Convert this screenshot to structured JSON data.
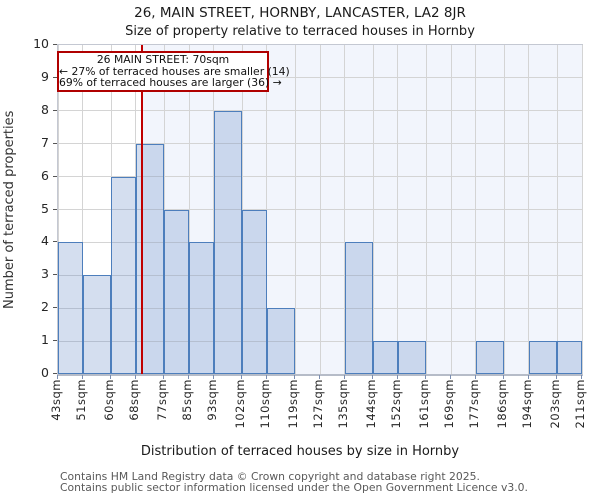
{
  "chart_data": {
    "type": "bar",
    "title": "26, MAIN STREET, HORNBY, LANCASTER, LA2 8JR",
    "subtitle": "Size of property relative to terraced houses in Hornby",
    "xlabel": "Distribution of terraced houses by size in Hornby",
    "ylabel": "Number of terraced properties",
    "bin_edges_sqm": [
      43,
      51,
      60,
      68,
      77,
      85,
      93,
      102,
      110,
      119,
      127,
      135,
      144,
      152,
      161,
      169,
      177,
      186,
      194,
      203,
      211
    ],
    "x_tick_labels": [
      "43sqm",
      "51sqm",
      "60sqm",
      "68sqm",
      "77sqm",
      "85sqm",
      "93sqm",
      "102sqm",
      "110sqm",
      "119sqm",
      "127sqm",
      "135sqm",
      "144sqm",
      "152sqm",
      "161sqm",
      "169sqm",
      "177sqm",
      "186sqm",
      "194sqm",
      "203sqm",
      "211sqm"
    ],
    "values": [
      4,
      3,
      6,
      7,
      5,
      4,
      8,
      5,
      2,
      0,
      0,
      4,
      1,
      1,
      0,
      0,
      1,
      0,
      1,
      1
    ],
    "y_ticks": [
      0,
      1,
      2,
      3,
      4,
      5,
      6,
      7,
      8,
      9,
      10
    ],
    "ylim": [
      0,
      10
    ],
    "xlim_sqm": [
      43,
      211
    ],
    "grid": true,
    "legend": null,
    "marker": {
      "value_sqm": 70,
      "shaded_side": "right"
    },
    "annotation": {
      "line1": "26 MAIN STREET: 70sqm",
      "line2": "← 27% of terraced houses are smaller (14)",
      "line3": "69% of terraced houses are larger (36) →"
    },
    "colors": {
      "bar_fill": "rgba(99,137,197,0.28)",
      "bar_border": "#4d7ebc",
      "marker_line": "#c00000",
      "annotation_border": "#b00000",
      "shaded_region": "#f2f5fc",
      "grid": "#d4d4d4",
      "footer_text": "#595959"
    }
  },
  "footer": {
    "line1": "Contains HM Land Registry data © Crown copyright and database right 2025.",
    "line2": "Contains public sector information licensed under the Open Government Licence v3.0."
  }
}
